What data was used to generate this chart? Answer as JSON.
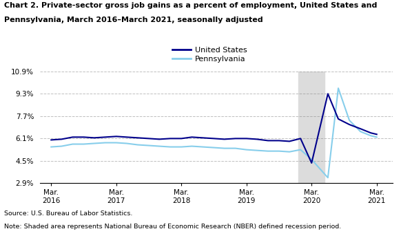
{
  "title_line1": "Chart 2. Private-sector gross job gains as a percent of employment, United States and",
  "title_line2": "Pennsylvania, March 2016–March 2021, seasonally adjusted",
  "source": "Source: U.S. Bureau of Labor Statistics.",
  "note": "Note: Shaded area represents National Bureau of Economic Research (NBER) defined recession period.",
  "legend": [
    "United States",
    "Pennsylvania"
  ],
  "us_color": "#00008B",
  "pa_color": "#87CEEB",
  "recession_color": "#DCDCDC",
  "recession_start": 2019.97,
  "recession_end": 2020.37,
  "yticks": [
    2.9,
    4.5,
    6.1,
    7.7,
    9.3,
    10.9
  ],
  "ylim": [
    2.9,
    10.9
  ],
  "xlim": [
    2016.0,
    2021.42
  ],
  "xtick_positions": [
    2016.17,
    2017.17,
    2018.17,
    2019.17,
    2020.17,
    2021.17
  ],
  "us_x": [
    2016.17,
    2016.33,
    2016.5,
    2016.67,
    2016.83,
    2017.0,
    2017.17,
    2017.33,
    2017.5,
    2017.67,
    2017.83,
    2018.0,
    2018.17,
    2018.33,
    2018.5,
    2018.67,
    2018.83,
    2019.0,
    2019.17,
    2019.33,
    2019.5,
    2019.67,
    2019.83,
    2020.0,
    2020.17,
    2020.42,
    2020.58,
    2020.75,
    2020.92,
    2021.08,
    2021.17
  ],
  "us_y": [
    6.0,
    6.05,
    6.2,
    6.2,
    6.15,
    6.2,
    6.25,
    6.2,
    6.15,
    6.1,
    6.05,
    6.1,
    6.1,
    6.2,
    6.15,
    6.1,
    6.05,
    6.1,
    6.1,
    6.05,
    5.95,
    5.95,
    5.9,
    6.1,
    4.35,
    9.3,
    7.5,
    7.1,
    6.8,
    6.5,
    6.4
  ],
  "pa_x": [
    2016.17,
    2016.33,
    2016.5,
    2016.67,
    2016.83,
    2017.0,
    2017.17,
    2017.33,
    2017.5,
    2017.67,
    2017.83,
    2018.0,
    2018.17,
    2018.33,
    2018.5,
    2018.67,
    2018.83,
    2019.0,
    2019.17,
    2019.33,
    2019.5,
    2019.67,
    2019.83,
    2020.0,
    2020.17,
    2020.42,
    2020.58,
    2020.75,
    2020.92,
    2021.08,
    2021.17
  ],
  "pa_y": [
    5.5,
    5.55,
    5.7,
    5.7,
    5.75,
    5.8,
    5.8,
    5.75,
    5.65,
    5.6,
    5.55,
    5.5,
    5.5,
    5.55,
    5.5,
    5.45,
    5.4,
    5.4,
    5.3,
    5.25,
    5.2,
    5.2,
    5.15,
    5.3,
    4.6,
    3.3,
    9.7,
    7.4,
    6.6,
    6.3,
    6.2
  ]
}
